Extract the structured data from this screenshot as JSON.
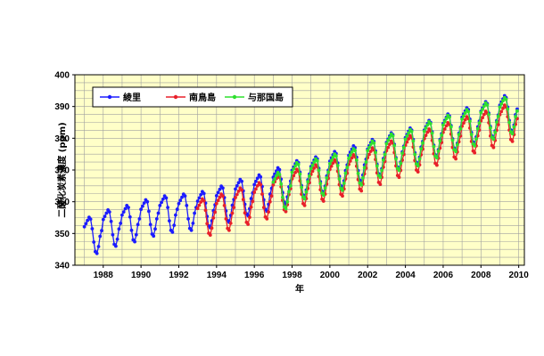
{
  "chart_data": {
    "type": "line",
    "title": "",
    "xlabel": "年",
    "ylabel": "二酸化炭素濃度 (ppm)",
    "xlim": [
      1986.5,
      2010.3
    ],
    "ylim": [
      340,
      400
    ],
    "x_ticks": [
      "1988",
      "1990",
      "1992",
      "1994",
      "1996",
      "1998",
      "2000",
      "2002",
      "2004",
      "2006",
      "2008",
      "2010"
    ],
    "y_ticks": [
      "340",
      "350",
      "360",
      "370",
      "380",
      "390",
      "400"
    ],
    "grid": true,
    "legend_position": "top-left",
    "plot_background": "#ffffc8",
    "monthly_seasonal_offsets_ppm": [
      1.6,
      2.6,
      3.6,
      4.6,
      4.0,
      1.0,
      -3.2,
      -6.2,
      -6.8,
      -4.6,
      -1.4,
      0.4
    ],
    "series": [
      {
        "name": "綾里",
        "color": "#1c1cff",
        "start_year": 1987,
        "annual_mean_ppm": [
          350.5,
          352.8,
          354.2,
          356.0,
          357.2,
          357.8,
          358.6,
          360.3,
          362.4,
          363.8,
          366.1,
          368.3,
          369.5,
          371.2,
          373.0,
          375.0,
          377.1,
          378.6,
          381.0,
          383.0,
          385.0,
          386.9,
          388.8
        ]
      },
      {
        "name": "南鳥島",
        "color": "#e8202a",
        "start_year": 1993,
        "annual_mean_ppm": [
          356.3,
          357.8,
          359.7,
          361.4,
          363.7,
          365.6,
          367.0,
          368.6,
          370.2,
          372.3,
          374.5,
          376.2,
          378.3,
          380.3,
          382.2,
          383.9,
          385.8
        ]
      },
      {
        "name": "与那国島",
        "color": "#2ee02e",
        "start_year": 1997,
        "annual_mean_ppm": [
          364.6,
          367.7,
          368.9,
          370.4,
          372.1,
          374.5,
          376.7,
          378.1,
          380.6,
          382.6,
          384.4,
          386.5,
          388.2
        ]
      }
    ]
  }
}
